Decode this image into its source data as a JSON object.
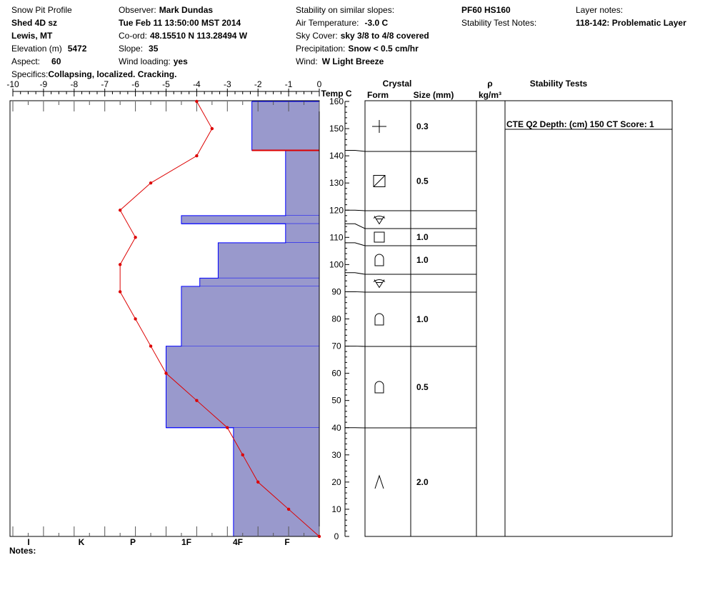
{
  "header": {
    "col1": {
      "title": "Snow Pit Profile",
      "pit_name": "Shed 4D sz",
      "location": "Lewis, MT",
      "elevation_label": "Elevation (m)",
      "elevation_value": "5472",
      "aspect_label": "Aspect:",
      "aspect_value": "60",
      "specifics_label": "Specifics:",
      "specifics_value": "Collapsing, localized. Cracking."
    },
    "col2": {
      "observer_label": "Observer:",
      "observer_value": "Mark Dundas",
      "datetime": "Tue Feb 11 13:50:00 MST 2014",
      "coord_label": "Co-ord:",
      "coord_value": "48.15510 N 113.28494 W",
      "slope_label": "Slope:",
      "slope_value": "35",
      "wind_loading_label": "Wind loading:",
      "wind_loading_value": "yes"
    },
    "col3": {
      "stability_label": "Stability on similar slopes:",
      "air_temp_label": "Air Temperature:",
      "air_temp_value": "-3.0 C",
      "sky_label": "Sky Cover:",
      "sky_value": "sky 3/8 to 4/8 covered",
      "precip_label": "Precipitation:",
      "precip_value": "Snow < 0.5 cm/hr",
      "wind_label": "Wind:",
      "wind_value": "W Light Breeze"
    },
    "col4": {
      "pf_hs": "PF60 HS160",
      "stability_test_notes_label": "Stability Test Notes:"
    },
    "col5": {
      "layer_notes_label": "Layer notes:",
      "layer_notes_value": "118-142: Problematic Layer"
    }
  },
  "notes_label": "Notes:",
  "table_headers": {
    "temp": "Temp C",
    "crystal": "Crystal",
    "form": "Form",
    "size": "Size (mm)",
    "rho": "ρ",
    "density_unit": "kg/m³",
    "stability_tests": "Stability Tests"
  },
  "layers": [
    {
      "top": 160,
      "bottom": 142,
      "form": "plus-icon",
      "size": "0.3"
    },
    {
      "top": 142,
      "bottom": 120,
      "form": "slashed-square-icon",
      "size": "0.5"
    },
    {
      "top": 120,
      "bottom": 115,
      "form": "surface-hoar-icon",
      "size": ""
    },
    {
      "top": 115,
      "bottom": 108,
      "form": "square-icon",
      "size": "1.0"
    },
    {
      "top": 108,
      "bottom": 97,
      "form": "depth-hoar-icon",
      "size": "1.0"
    },
    {
      "top": 97,
      "bottom": 90,
      "form": "surface-hoar-icon",
      "size": ""
    },
    {
      "top": 90,
      "bottom": 70,
      "form": "depth-hoar-icon",
      "size": "1.0"
    },
    {
      "top": 70,
      "bottom": 40,
      "form": "depth-hoar-icon",
      "size": "0.5"
    },
    {
      "top": 40,
      "bottom": 0,
      "form": "caret-icon",
      "size": "2.0"
    }
  ],
  "stability_tests": [
    {
      "depth": 150,
      "text": "CTE Q2 Depth: (cm) 150 CT Score: 1"
    }
  ],
  "chart_data": {
    "type": "area",
    "x_temp_axis": {
      "label": "",
      "range": [
        -10,
        0
      ],
      "ticks": [
        "-10",
        "-9",
        "-8",
        "-7",
        "-6",
        "-5",
        "-4",
        "-3",
        "-2",
        "-1",
        "0"
      ]
    },
    "y_axis": {
      "label": "",
      "range": [
        0,
        160
      ],
      "ticks": [
        "0",
        "10",
        "20",
        "30",
        "40",
        "50",
        "60",
        "70",
        "80",
        "90",
        "100",
        "110",
        "120",
        "130",
        "140",
        "150",
        "160"
      ]
    },
    "hardness_axis": {
      "ticks": [
        "I",
        "K",
        "P",
        "1F",
        "4F",
        "F"
      ]
    },
    "series": [
      {
        "type": "hardness-steps",
        "color": "#9999cc",
        "edge_color": "#0000ff",
        "segments": [
          {
            "top": 160,
            "bottom": 142,
            "temp_equiv": -2.2
          },
          {
            "top": 142,
            "bottom": 118,
            "temp_equiv": -1.1
          },
          {
            "top": 118,
            "bottom": 115,
            "temp_equiv": -4.5
          },
          {
            "top": 115,
            "bottom": 108,
            "temp_equiv": -1.1
          },
          {
            "top": 108,
            "bottom": 95,
            "temp_equiv": -3.3
          },
          {
            "top": 95,
            "bottom": 92,
            "temp_equiv": -3.9
          },
          {
            "top": 92,
            "bottom": 70,
            "temp_equiv": -4.5
          },
          {
            "top": 70,
            "bottom": 40,
            "temp_equiv": -5.0
          },
          {
            "top": 40,
            "bottom": 0,
            "temp_equiv": -2.8
          }
        ]
      },
      {
        "type": "temperature-profile",
        "color": "#dd0000",
        "points": [
          {
            "depth": 160,
            "temp": -4.0
          },
          {
            "depth": 150,
            "temp": -3.5
          },
          {
            "depth": 140,
            "temp": -4.0
          },
          {
            "depth": 130,
            "temp": -5.5
          },
          {
            "depth": 120,
            "temp": -6.5
          },
          {
            "depth": 110,
            "temp": -6.0
          },
          {
            "depth": 100,
            "temp": -6.5
          },
          {
            "depth": 90,
            "temp": -6.5
          },
          {
            "depth": 80,
            "temp": -6.0
          },
          {
            "depth": 70,
            "temp": -5.5
          },
          {
            "depth": 60,
            "temp": -5.0
          },
          {
            "depth": 50,
            "temp": -4.0
          },
          {
            "depth": 40,
            "temp": -3.0
          },
          {
            "depth": 30,
            "temp": -2.5
          },
          {
            "depth": 20,
            "temp": -2.0
          },
          {
            "depth": 10,
            "temp": -1.0
          },
          {
            "depth": 0,
            "temp": 0.0
          }
        ]
      }
    ],
    "problem_layer_marker": {
      "depth": 142,
      "color": "#dd0000"
    }
  }
}
